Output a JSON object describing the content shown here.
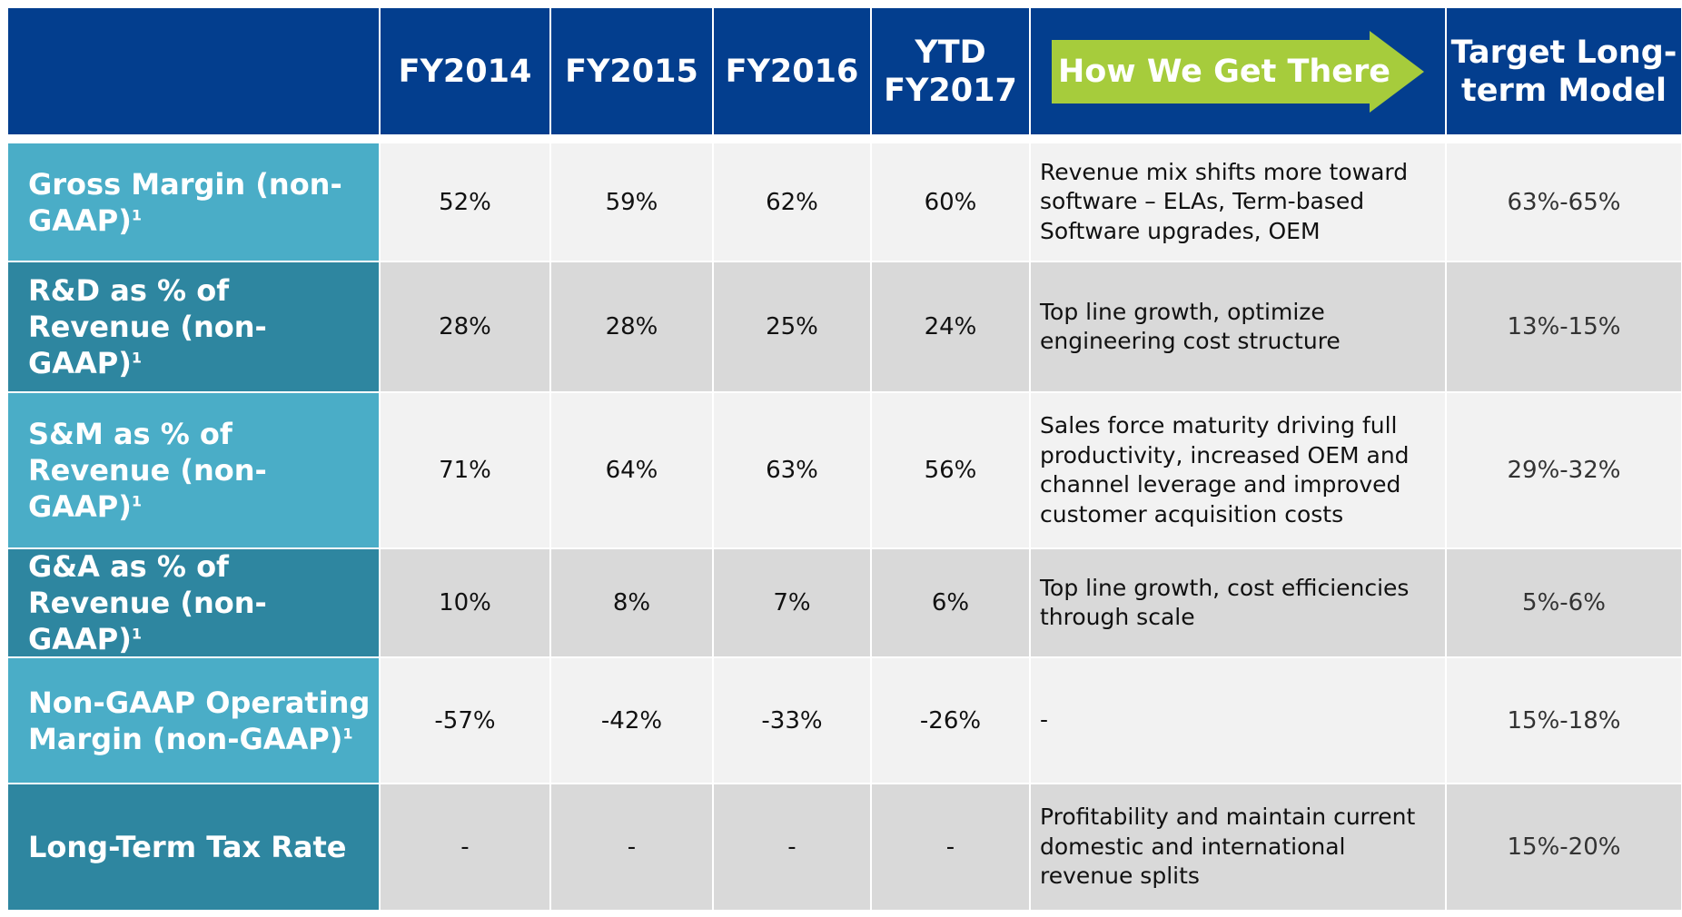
{
  "table": {
    "headers": [
      "FY2014",
      "FY2015",
      "FY2016",
      "YTD FY2017",
      "How We Get There",
      "Target Long-term Model"
    ],
    "rows": [
      {
        "label": "Gross Margin (non-GAAP)",
        "note": "1",
        "values": [
          "52%",
          "59%",
          "62%",
          "60%"
        ],
        "how": "Revenue mix shifts more toward software – ELAs, Term-based Software upgrades, OEM",
        "target": "63%-65%"
      },
      {
        "label": "R&D as % of Revenue (non-GAAP)",
        "note": "1",
        "values": [
          "28%",
          "28%",
          "25%",
          "24%"
        ],
        "how": "Top line growth, optimize engineering cost structure",
        "target": "13%-15%"
      },
      {
        "label": "S&M as % of Revenue (non-GAAP)",
        "note": "1",
        "values": [
          "71%",
          "64%",
          "63%",
          "56%"
        ],
        "how": "Sales force maturity driving full productivity, increased OEM and channel leverage and improved customer acquisition costs",
        "target": "29%-32%"
      },
      {
        "label": "G&A as % of Revenue (non-GAAP)",
        "note": "1",
        "values": [
          "10%",
          "8%",
          "7%",
          "6%"
        ],
        "how": "Top line growth, cost efficiencies through scale",
        "target": "5%-6%"
      },
      {
        "label": "Non-GAAP Operating Margin (non-GAAP)",
        "note": "1",
        "values": [
          "-57%",
          "-42%",
          "-33%",
          "-26%"
        ],
        "how": "-",
        "target": "15%-18%"
      },
      {
        "label": "Long-Term Tax Rate",
        "values": [
          "-",
          "-",
          "-",
          "-"
        ],
        "how": "Profitability and maintain current domestic and international revenue splits",
        "target": "15%-20%"
      }
    ]
  }
}
